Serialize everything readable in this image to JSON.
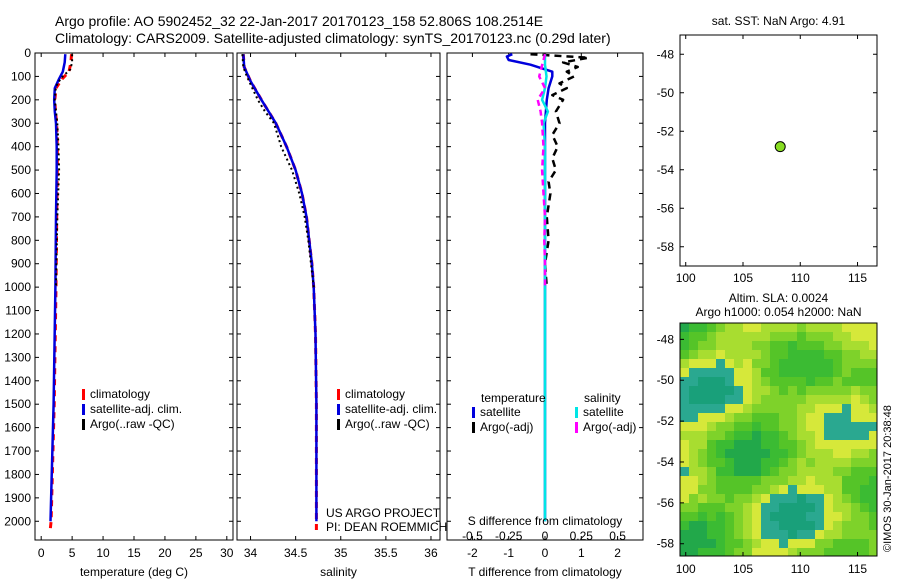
{
  "header": {
    "line1": "Argo profile: AO 5902452_32 22-Jan-2017 20170123_158 52.806S 108.2514E",
    "line2": "Climatology: CARS2009. Satellite-adjusted climatology: synTS_20170123.nc (0.29d later)"
  },
  "colors": {
    "climatology": "#ff0000",
    "satellite": "#0000dd",
    "argo": "#000000",
    "sal_satellite": "#00e5e5",
    "sal_argo": "#ff00ff",
    "marker": "#88dd22"
  },
  "chart_data": [
    {
      "type": "line",
      "name": "temperature",
      "xlabel": "temperature (deg C)",
      "ylabel": "",
      "xlim": [
        -1,
        31
      ],
      "ylim": [
        2080,
        0
      ],
      "xticks": [
        0,
        5,
        10,
        15,
        20,
        25,
        30
      ],
      "xticklabels": [
        "0",
        "5",
        "10",
        "15",
        "20",
        "25",
        "30"
      ],
      "yticks": [
        0,
        100,
        200,
        300,
        400,
        500,
        600,
        700,
        800,
        900,
        1000,
        1100,
        1200,
        1300,
        1400,
        1500,
        1600,
        1700,
        1800,
        1900,
        2000
      ],
      "yticklabels": [
        "0",
        "100",
        "200",
        "300",
        "400",
        "500",
        "600",
        "700",
        "800",
        "900",
        "1000",
        "1100",
        "1200",
        "1300",
        "1400",
        "1500",
        "1600",
        "1700",
        "1800",
        "1900",
        "2000"
      ],
      "legend": {
        "labels": [
          "climatology",
          "satellite-adj. clim.",
          "Argo(..raw -QC)"
        ],
        "position": "bottom-right"
      },
      "series": [
        {
          "name": "climatology",
          "depth": [
            5,
            40,
            80,
            110,
            150,
            200,
            250,
            300,
            400,
            500,
            700,
            1000,
            1500,
            2000,
            2050
          ],
          "values": [
            4.9,
            4.8,
            4.5,
            3.4,
            2.4,
            2.2,
            2.3,
            2.5,
            2.6,
            2.6,
            2.5,
            2.4,
            2.1,
            1.6,
            1.4
          ]
        },
        {
          "name": "satellite-adj. clim.",
          "depth": [
            5,
            40,
            80,
            110,
            150,
            200,
            250,
            300,
            400,
            500,
            700,
            1000,
            1500,
            2000
          ],
          "values": [
            3.9,
            3.8,
            3.5,
            2.9,
            2.2,
            2.1,
            2.2,
            2.4,
            2.5,
            2.5,
            2.4,
            2.3,
            2.0,
            1.5
          ]
        },
        {
          "name": "Argo(..raw -QC)",
          "depth": [
            5,
            40,
            70,
            100,
            130,
            160,
            200,
            250,
            300,
            400,
            500,
            700,
            1000
          ],
          "values": [
            5.0,
            5.0,
            4.7,
            3.5,
            2.6,
            2.3,
            2.2,
            2.4,
            2.6,
            2.8,
            2.9,
            2.6,
            2.4
          ]
        }
      ]
    },
    {
      "type": "line",
      "name": "salinity",
      "xlabel": "salinity",
      "xlim": [
        33.85,
        36.1
      ],
      "ylim": [
        2080,
        0
      ],
      "xticks": [
        34,
        34.5,
        35,
        35.5,
        36
      ],
      "xticklabels": [
        "34",
        "34.5",
        "35",
        "35.5",
        "36"
      ],
      "legend": {
        "labels": [
          "climatology",
          "satellite-adj. clim.",
          "Argo(..raw -QC)"
        ],
        "position": "bottom-right"
      },
      "annotation": [
        "US ARGO PROJECT",
        "PI: DEAN ROEMMICH"
      ],
      "series": [
        {
          "name": "climatology",
          "depth": [
            5,
            60,
            120,
            200,
            300,
            400,
            500,
            600,
            700,
            800,
            900,
            1000,
            1200,
            1500,
            2000,
            2050
          ],
          "values": [
            33.92,
            33.93,
            34.0,
            34.12,
            34.28,
            34.4,
            34.5,
            34.57,
            34.62,
            34.65,
            34.68,
            34.7,
            34.72,
            34.73,
            34.73,
            34.73
          ]
        },
        {
          "name": "satellite-adj. clim.",
          "depth": [
            5,
            60,
            120,
            200,
            300,
            400,
            500,
            600,
            700,
            800,
            900,
            1000,
            1200,
            1500,
            2000
          ],
          "values": [
            33.92,
            33.93,
            34.0,
            34.12,
            34.28,
            34.4,
            34.5,
            34.57,
            34.62,
            34.65,
            34.68,
            34.7,
            34.72,
            34.73,
            34.73
          ]
        },
        {
          "name": "Argo(..raw -QC)",
          "depth": [
            5,
            60,
            100,
            150,
            200,
            250,
            300,
            400,
            500,
            600,
            700,
            800,
            900,
            1000
          ],
          "values": [
            33.91,
            33.92,
            33.96,
            34.02,
            34.08,
            34.16,
            34.26,
            34.34,
            34.46,
            34.54,
            34.6,
            34.64,
            34.67,
            34.7
          ]
        }
      ]
    },
    {
      "type": "line",
      "name": "difference",
      "xlabel": "T difference from climatology",
      "x2label": "S difference from climatology",
      "xlim": [
        -2.7,
        2.7
      ],
      "ylim": [
        2080,
        0
      ],
      "xticks": [
        -2,
        -1,
        0,
        1,
        2
      ],
      "xticklabels": [
        "-2",
        "-1",
        "0",
        "1",
        "2"
      ],
      "x2ticks": [
        -0.5,
        -0.25,
        0,
        0.25,
        0.5
      ],
      "x2ticklabels": [
        "-0.5",
        "-0.25",
        "0",
        "0.25",
        "0.5"
      ],
      "legend": {
        "temperature_title": "temperature",
        "salinity_title": "salinity",
        "labels": [
          "satellite",
          "Argo(-adj)",
          "satellite",
          "Argo(-adj)"
        ]
      },
      "series": [
        {
          "name": "T satellite",
          "depth": [
            5,
            15,
            30,
            50,
            80,
            100,
            150,
            200,
            300,
            500,
            700,
            1000,
            1500,
            2000
          ],
          "values": [
            -0.9,
            -1.05,
            -1.0,
            -0.4,
            0.2,
            0.2,
            0.1,
            0.05,
            0.0,
            0.0,
            0.0,
            0.0,
            0.0,
            0.0
          ]
        },
        {
          "name": "T Argo(-adj)",
          "depth": [
            5,
            20,
            40,
            60,
            80,
            100,
            130,
            150,
            180,
            200,
            250,
            300,
            350,
            400,
            450,
            500,
            550,
            600,
            700,
            800,
            900,
            1000
          ],
          "values": [
            -0.4,
            1.2,
            0.5,
            0.9,
            0.6,
            0.8,
            0.4,
            0.6,
            0.2,
            0.5,
            0.3,
            0.4,
            0.2,
            0.35,
            0.2,
            0.3,
            0.1,
            0.15,
            0.05,
            0.1,
            0.0,
            0.05
          ]
        },
        {
          "name": "S satellite",
          "depth": [
            5,
            50,
            100,
            150,
            200,
            250,
            300,
            400,
            500,
            600,
            700,
            1000,
            1500,
            2000
          ],
          "values": [
            0.0,
            0.0,
            0.01,
            0.0,
            -0.02,
            0.02,
            -0.01,
            0.0,
            0.0,
            0.0,
            0.0,
            0.0,
            0.0,
            0.0
          ]
        },
        {
          "name": "S Argo(-adj)",
          "depth": [
            5,
            100,
            150,
            200,
            250,
            300,
            400,
            500,
            600,
            700,
            800,
            900,
            1000
          ],
          "values": [
            0.0,
            -0.04,
            0.0,
            -0.05,
            -0.03,
            -0.02,
            -0.01,
            -0.02,
            -0.01,
            0.0,
            -0.005,
            0.0,
            0.0
          ]
        }
      ]
    },
    {
      "type": "scatter",
      "name": "location map",
      "title": "sat. SST: NaN Argo: 4.91",
      "xlim": [
        99.5,
        116.7
      ],
      "ylim": [
        -59,
        -47
      ],
      "xticks": [
        100,
        105,
        110,
        115
      ],
      "xticklabels": [
        "100",
        "105",
        "110",
        "115"
      ],
      "yticks": [
        -48,
        -50,
        -52,
        -54,
        -56,
        -58
      ],
      "yticklabels": [
        "-48",
        "-50",
        "-52",
        "-54",
        "-56",
        "-58"
      ],
      "points": [
        {
          "x": 108.25,
          "y": -52.8
        }
      ]
    },
    {
      "type": "heatmap",
      "name": "altimetry map",
      "title1": "Altim. SLA: 0.0024",
      "title2": "Argo h1000: 0.054 h2000: NaN",
      "xlim": [
        99.5,
        116.7
      ],
      "ylim": [
        -58.6,
        -47.2
      ],
      "xticks": [
        100,
        105,
        110,
        115
      ],
      "xticklabels": [
        "100",
        "105",
        "110",
        "115"
      ],
      "yticks": [
        -48,
        -50,
        -52,
        -54,
        -56,
        -58
      ],
      "yticklabels": [
        "-48",
        "-50",
        "-52",
        "-54",
        "-56",
        "-58"
      ],
      "side_label": "©IMOS 30-Jan-2017 20:38:48"
    }
  ]
}
